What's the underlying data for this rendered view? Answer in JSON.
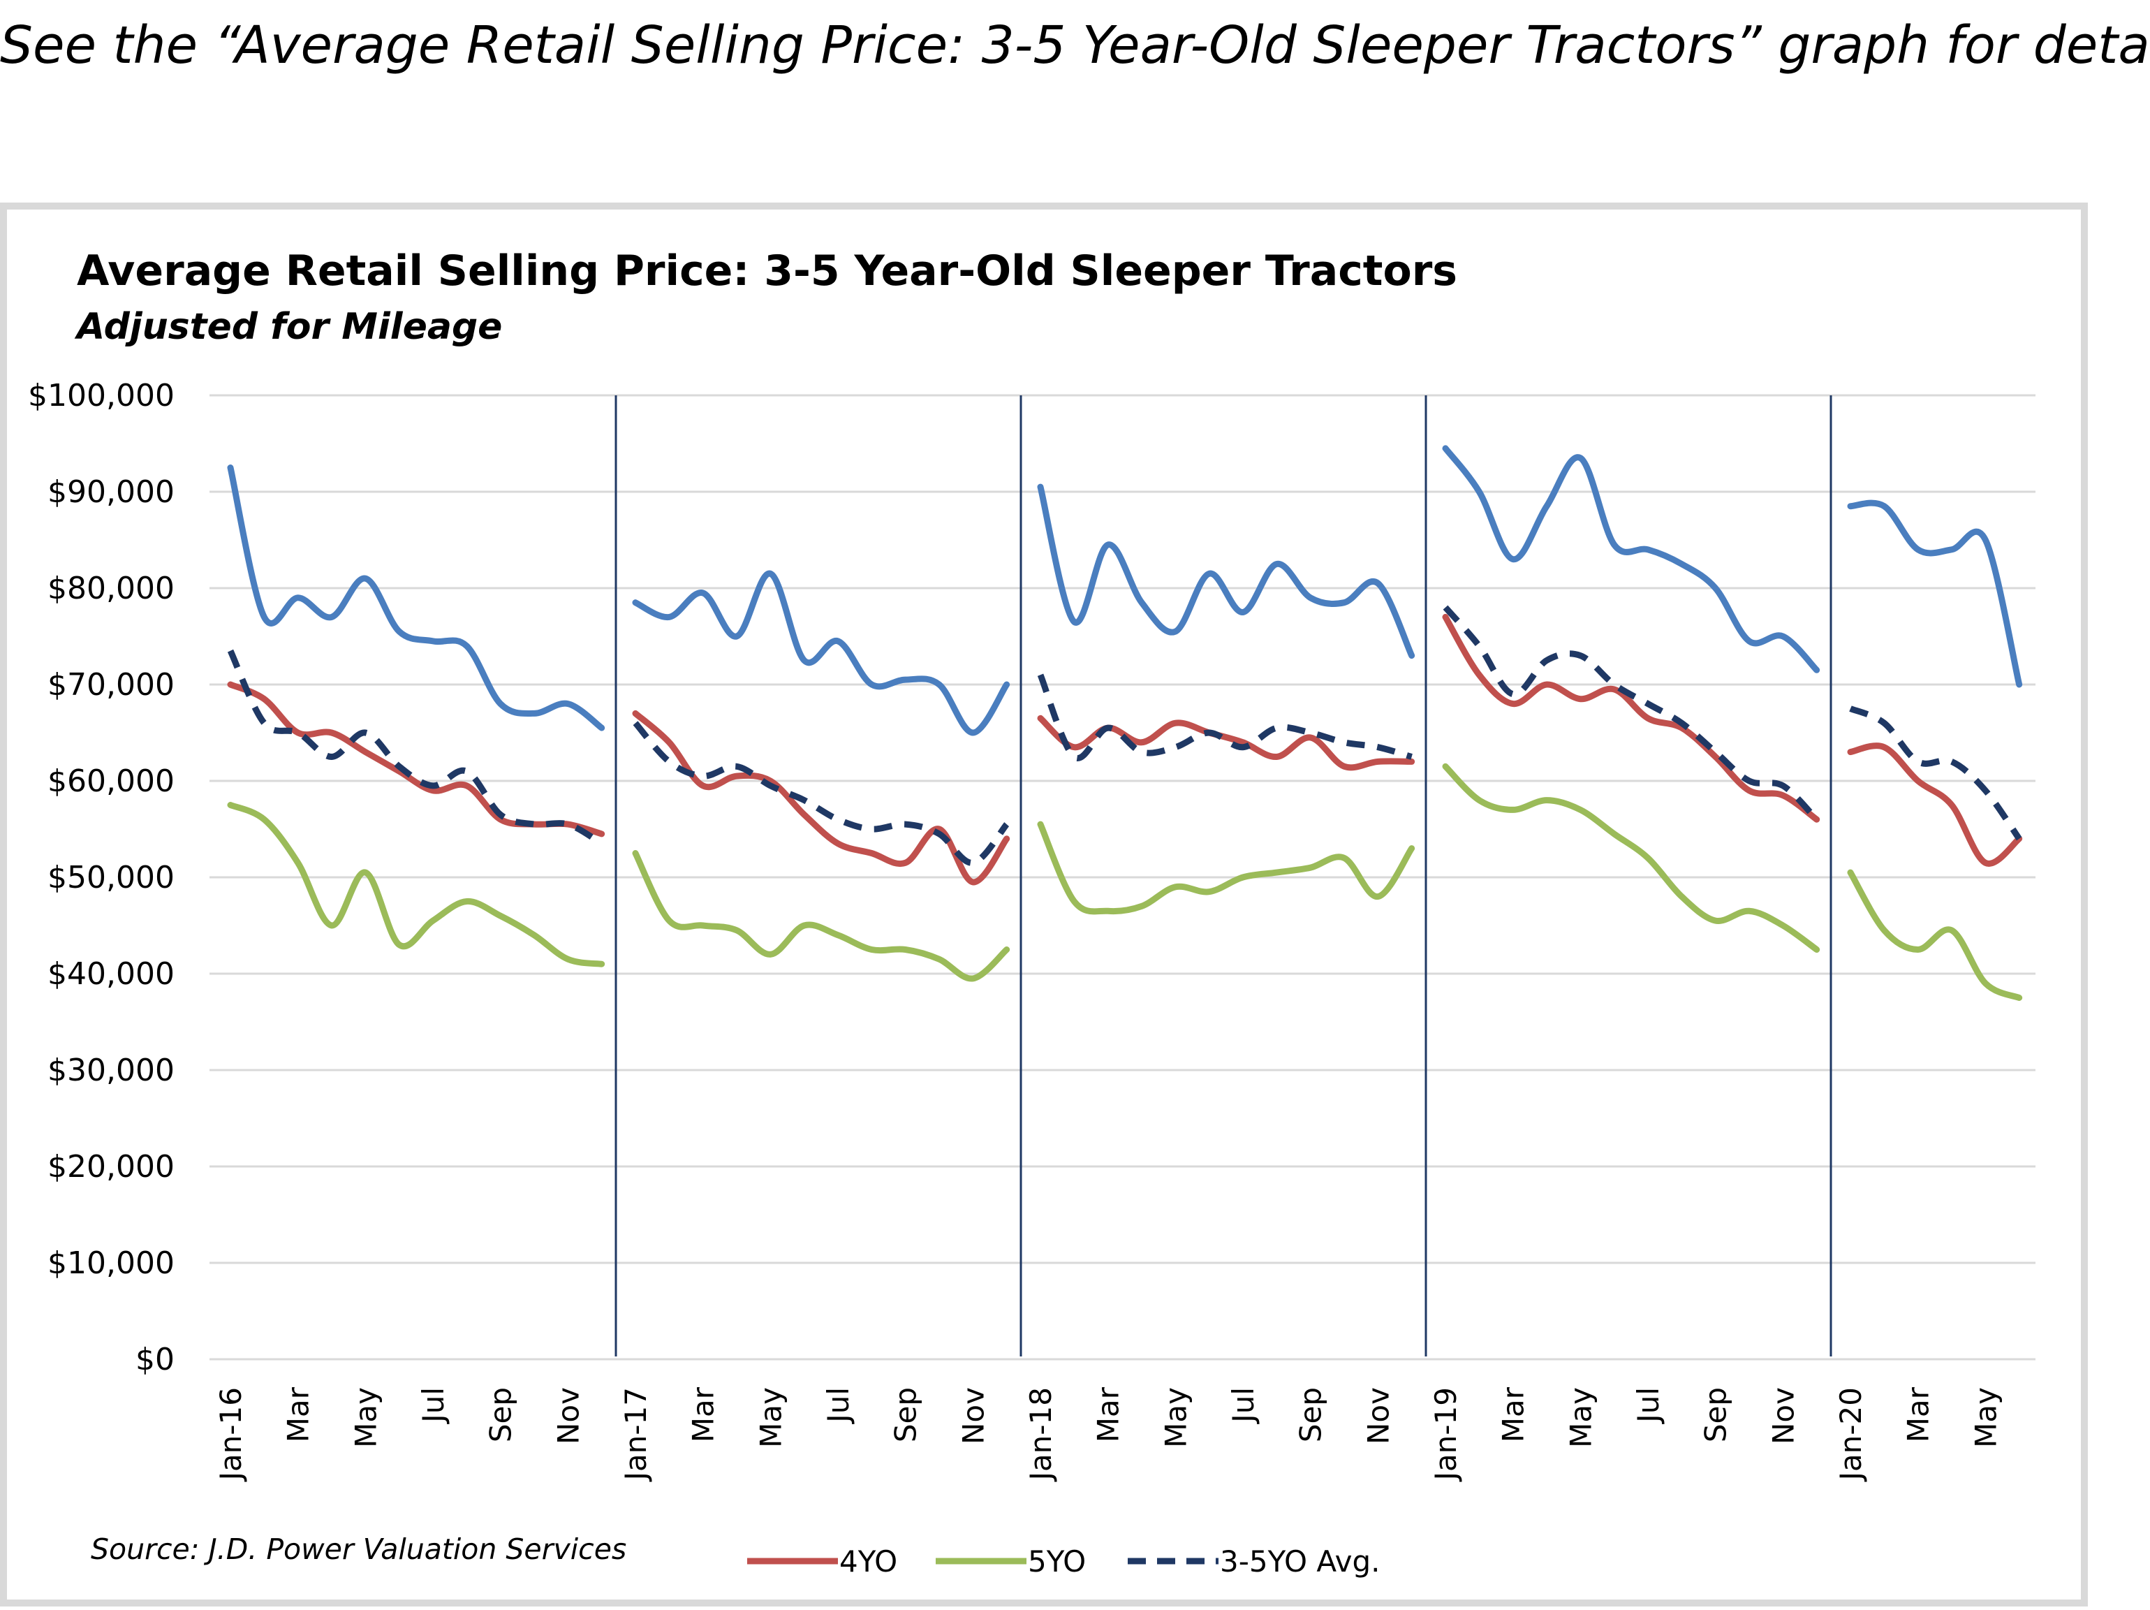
{
  "intro_text": "See the “Average Retail Selling Price: 3-5 Year-Old Sleeper Tractors” graph for deta",
  "colors": {
    "3YO": "#4a7ebf",
    "4YO": "#c0504d",
    "5YO": "#9bbb59",
    "avg": "#1f3864",
    "grid": "#d9d9d9",
    "year_divider": "#1f3864"
  },
  "chart_data": {
    "type": "line",
    "title": "Average Retail Selling Price: 3-5 Year-Old  Sleeper Tractors",
    "subtitle": "Adjusted for Mileage",
    "ylim": [
      0,
      100000
    ],
    "y_ticks": [
      "$0",
      "$10,000",
      "$20,000",
      "$30,000",
      "$40,000",
      "$50,000",
      "$60,000",
      "$70,000",
      "$80,000",
      "$90,000",
      "$100,000"
    ],
    "x_labels": [
      "Jan-16",
      "Mar",
      "May",
      "Jul",
      "Sep",
      "Nov",
      "Jan-17",
      "Mar",
      "May",
      "Jul",
      "Sep",
      "Nov",
      "Jan-18",
      "Mar",
      "May",
      "Jul",
      "Sep",
      "Nov",
      "Jan-19",
      "Mar",
      "May",
      "Jul",
      "Sep",
      "Nov",
      "Jan-20",
      "Mar",
      "May"
    ],
    "grid": "horizontal",
    "legend_position": "bottom",
    "year_divider_labels": [
      "Jan-17",
      "Jan-18",
      "Jan-19",
      "Jan-20"
    ],
    "source": "Source: J.D. Power Valuation Services",
    "series": [
      {
        "key": "3YO",
        "style": "solid",
        "segments": [
          [
            92500,
            77000,
            79000,
            77000,
            81000,
            75500,
            74500,
            74000,
            68000,
            67000,
            68000,
            65500
          ],
          [
            78500,
            77000,
            79500,
            75000,
            81500,
            72500,
            74500,
            70000,
            70500,
            70000,
            65000,
            70000
          ],
          [
            90500,
            76500,
            84500,
            78500,
            75500,
            81500,
            77500,
            82500,
            79000,
            78500,
            80500,
            73000
          ],
          [
            94500,
            90000,
            83000,
            88500,
            93500,
            84500,
            84000,
            82500,
            80000,
            74500,
            75000,
            71500
          ],
          [
            88500,
            88500,
            84000,
            84000,
            85000,
            70000
          ]
        ]
      },
      {
        "key": "4YO",
        "name": "4YO",
        "style": "solid",
        "segments": [
          [
            70000,
            68500,
            65000,
            65000,
            63000,
            61000,
            59000,
            59500,
            56000,
            55500,
            55500,
            54500
          ],
          [
            67000,
            64000,
            59500,
            60500,
            60000,
            56500,
            53500,
            52500,
            51500,
            55000,
            49500,
            54000
          ],
          [
            66500,
            63500,
            65500,
            64000,
            66000,
            65000,
            64000,
            62500,
            64500,
            61500,
            62000,
            62000
          ],
          [
            77000,
            71000,
            68000,
            70000,
            68500,
            69500,
            66500,
            65500,
            62500,
            59000,
            58500,
            56000
          ],
          [
            63000,
            63500,
            60000,
            57500,
            51500,
            54000
          ]
        ]
      },
      {
        "key": "5YO",
        "name": "5YO",
        "style": "solid",
        "segments": [
          [
            57500,
            56000,
            51500,
            45000,
            50500,
            43000,
            45500,
            47500,
            46000,
            44000,
            41500,
            41000
          ],
          [
            52500,
            45500,
            45000,
            44500,
            42000,
            45000,
            44000,
            42500,
            42500,
            41500,
            39500,
            42500
          ],
          [
            55500,
            47500,
            46500,
            47000,
            49000,
            48500,
            50000,
            50500,
            51000,
            52000,
            48000,
            53000
          ],
          [
            61500,
            58000,
            57000,
            58000,
            57000,
            54500,
            52000,
            48000,
            45500,
            46500,
            45000,
            42500
          ],
          [
            50500,
            44500,
            42500,
            44500,
            39000,
            37500
          ]
        ]
      },
      {
        "key": "avg",
        "name": "3-5YO Avg.",
        "style": "dashed",
        "segments": [
          [
            73500,
            66000,
            65000,
            62500,
            65000,
            61500,
            59500,
            61000,
            56500,
            55500,
            55500,
            53500
          ],
          [
            66000,
            62000,
            60500,
            61500,
            59500,
            58000,
            56000,
            55000,
            55500,
            54500,
            51500,
            55500
          ],
          [
            71000,
            62500,
            65500,
            63000,
            63500,
            65000,
            63500,
            65500,
            65000,
            64000,
            63500,
            62500
          ],
          [
            78000,
            74000,
            69000,
            72500,
            73000,
            70000,
            68000,
            66000,
            63000,
            60000,
            59500,
            56000
          ],
          [
            67500,
            66000,
            62000,
            62000,
            59000,
            54000
          ]
        ]
      }
    ]
  }
}
